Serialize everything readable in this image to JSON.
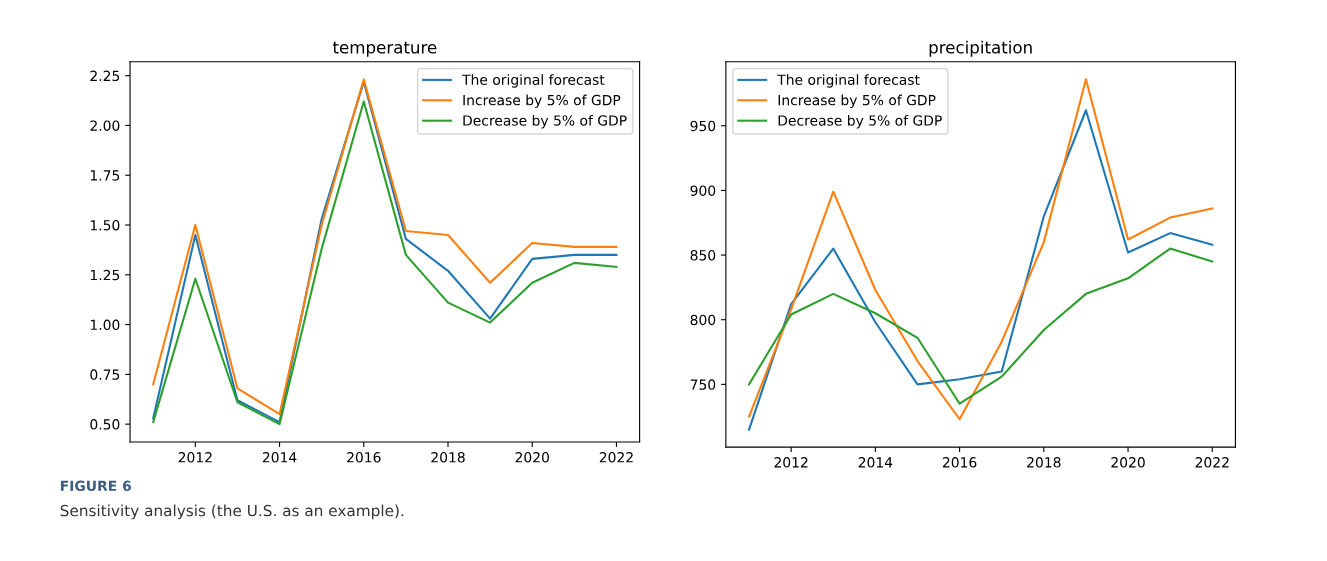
{
  "chart_data": [
    {
      "type": "line",
      "title": "temperature",
      "x": [
        2011,
        2012,
        2013,
        2014,
        2015,
        2016,
        2017,
        2018,
        2019,
        2020,
        2021,
        2022
      ],
      "series": [
        {
          "name": "The original forecast",
          "color": "#1f77b4",
          "values": [
            0.53,
            1.45,
            0.62,
            0.51,
            1.53,
            2.22,
            1.43,
            1.27,
            1.03,
            1.33,
            1.35,
            1.35
          ]
        },
        {
          "name": "Increase by 5% of GDP",
          "color": "#ff7f0e",
          "values": [
            0.7,
            1.5,
            0.68,
            0.55,
            1.5,
            2.23,
            1.47,
            1.45,
            1.21,
            1.41,
            1.39,
            1.39
          ]
        },
        {
          "name": "Decrease by 5% of GDP",
          "color": "#2ca02c",
          "values": [
            0.51,
            1.23,
            0.61,
            0.5,
            1.38,
            2.12,
            1.35,
            1.11,
            1.01,
            1.21,
            1.31,
            1.29
          ]
        }
      ],
      "xlim": [
        2010.45,
        2022.55
      ],
      "xticks": [
        2012,
        2014,
        2016,
        2018,
        2020,
        2022
      ],
      "ylim": [
        0.41,
        2.32
      ],
      "yticks": [
        {
          "value": 0.5,
          "label": "0.50"
        },
        {
          "value": 0.75,
          "label": "0.75"
        },
        {
          "value": 1.0,
          "label": "1.00"
        },
        {
          "value": 1.25,
          "label": "1.25"
        },
        {
          "value": 1.5,
          "label": "1.50"
        },
        {
          "value": 1.75,
          "label": "1.75"
        },
        {
          "value": 2.0,
          "label": "2.00"
        },
        {
          "value": 2.25,
          "label": "2.25"
        }
      ],
      "legend": "top right",
      "grid": false,
      "marker": "none",
      "line_style": "solid",
      "annotations": [
        "FIGURE 6",
        "Sensitivity analysis (the U.S. as an example)."
      ]
    },
    {
      "type": "line",
      "title": "precipitation",
      "x": [
        2011,
        2012,
        2013,
        2014,
        2015,
        2016,
        2017,
        2018,
        2019,
        2020,
        2021,
        2022
      ],
      "series": [
        {
          "name": "The original forecast",
          "color": "#1f77b4",
          "values": [
            715,
            812,
            855,
            798,
            750,
            754,
            760,
            880,
            962,
            852,
            867,
            858
          ]
        },
        {
          "name": "Increase by 5% of GDP",
          "color": "#ff7f0e",
          "values": [
            725,
            808,
            899,
            823,
            768,
            723,
            783,
            860,
            986,
            862,
            879,
            886
          ]
        },
        {
          "name": "Decrease by 5% of GDP",
          "color": "#2ca02c",
          "values": [
            750,
            804,
            820,
            805,
            786,
            735,
            756,
            792,
            820,
            832,
            855,
            845
          ]
        }
      ],
      "xlim": [
        2010.45,
        2022.55
      ],
      "xticks": [
        2012,
        2014,
        2016,
        2018,
        2020,
        2022
      ],
      "ylim": [
        701.45,
        999.55
      ],
      "yticks": [
        750,
        800,
        850,
        900,
        950
      ],
      "legend": "top left",
      "grid": false,
      "marker": "none",
      "line_style": "solid"
    }
  ]
}
